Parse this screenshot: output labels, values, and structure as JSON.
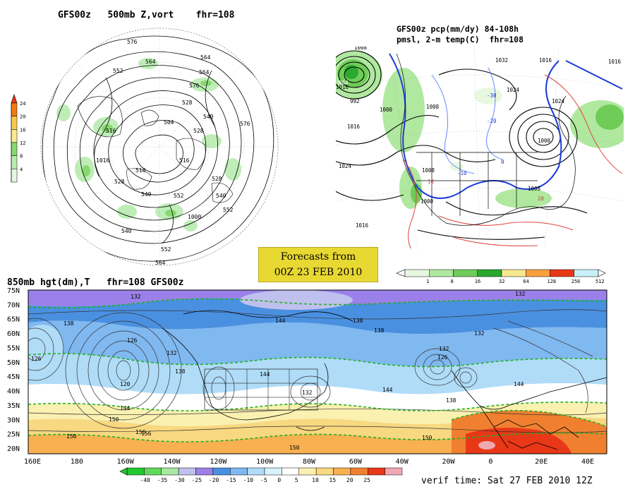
{
  "panels": {
    "upper_left": {
      "title": "GFS00z   500mb Z,vort    fhr=108",
      "contours": [
        "576",
        "564",
        "552",
        "540",
        "528",
        "516",
        "504",
        "516",
        "528",
        "540",
        "552",
        "564",
        "576",
        "516",
        "528",
        "540",
        "552",
        "564",
        "576",
        "528",
        "540",
        "552",
        "564",
        "1016",
        "1000"
      ],
      "colorbar": {
        "ticks": [
          "24",
          "20",
          "16",
          "12",
          "8",
          "4"
        ],
        "colors": [
          "#f07a18",
          "#f8c850",
          "#f8e890",
          "#88d870",
          "#b8ecb0",
          "#e4f8e0"
        ]
      }
    },
    "upper_right": {
      "title_line1": "GFS00z pcp(mm/dy) 84-108h",
      "title_line2": "pmsl, 2-m temp(C)  fhr=108",
      "labels": [
        "1008",
        "1016",
        "1024",
        "984",
        "992",
        "1000",
        "1008",
        "1016",
        "1024",
        "1032",
        "1000",
        "1008",
        "1016",
        "-10",
        "-20",
        "-30",
        "0",
        "10",
        "20",
        "1024",
        "1008",
        "1000",
        "1016",
        "1016"
      ],
      "colorbar": {
        "ticks": [
          "1",
          "8",
          "16",
          "32",
          "64",
          "128",
          "256",
          "512"
        ],
        "colors": [
          "#e8f8e0",
          "#b0e8a0",
          "#70cc58",
          "#2aa830",
          "#f8e890",
          "#f8a040",
          "#e83818",
          "#c8f0f8"
        ]
      }
    },
    "forecast_box": {
      "line1": "Forecasts from",
      "line2": "00Z 23 FEB 2010"
    },
    "bottom": {
      "title": "850mb hgt(dm),T   fhr=108 GFS00z",
      "lat_labels": [
        "75N",
        "70N",
        "65N",
        "60N",
        "55N",
        "50N",
        "45N",
        "40N",
        "35N",
        "30N",
        "25N",
        "20N"
      ],
      "lon_labels": [
        "160E",
        "180",
        "160W",
        "140W",
        "120W",
        "100W",
        "80W",
        "60W",
        "40W",
        "20W",
        "0",
        "20E",
        "40E"
      ],
      "contour_labels": [
        "132",
        "138",
        "126",
        "120",
        "144",
        "150",
        "156",
        "132",
        "138",
        "144",
        "150",
        "132",
        "126",
        "132",
        "138",
        "144",
        "138",
        "144",
        "150",
        "126",
        "132",
        "138",
        "144",
        "150",
        "156",
        "132"
      ],
      "colorbar": {
        "ticks": [
          "-40",
          "-35",
          "-30",
          "-25",
          "-20",
          "-15",
          "-10",
          "-5",
          "0",
          "5",
          "10",
          "15",
          "20",
          "25"
        ],
        "colors": [
          "#22c830",
          "#62d85a",
          "#a8e8a0",
          "#c0c0ee",
          "#9a80e8",
          "#4a90e0",
          "#80b8f0",
          "#b0dcf8",
          "#d8f2fc",
          "#ffffff",
          "#faf0b0",
          "#f8d880",
          "#f8b050",
          "#f08030",
          "#e83818",
          "#f0a8b0"
        ]
      },
      "verif_time": "verif time: Sat 27 FEB 2010 12Z"
    }
  }
}
